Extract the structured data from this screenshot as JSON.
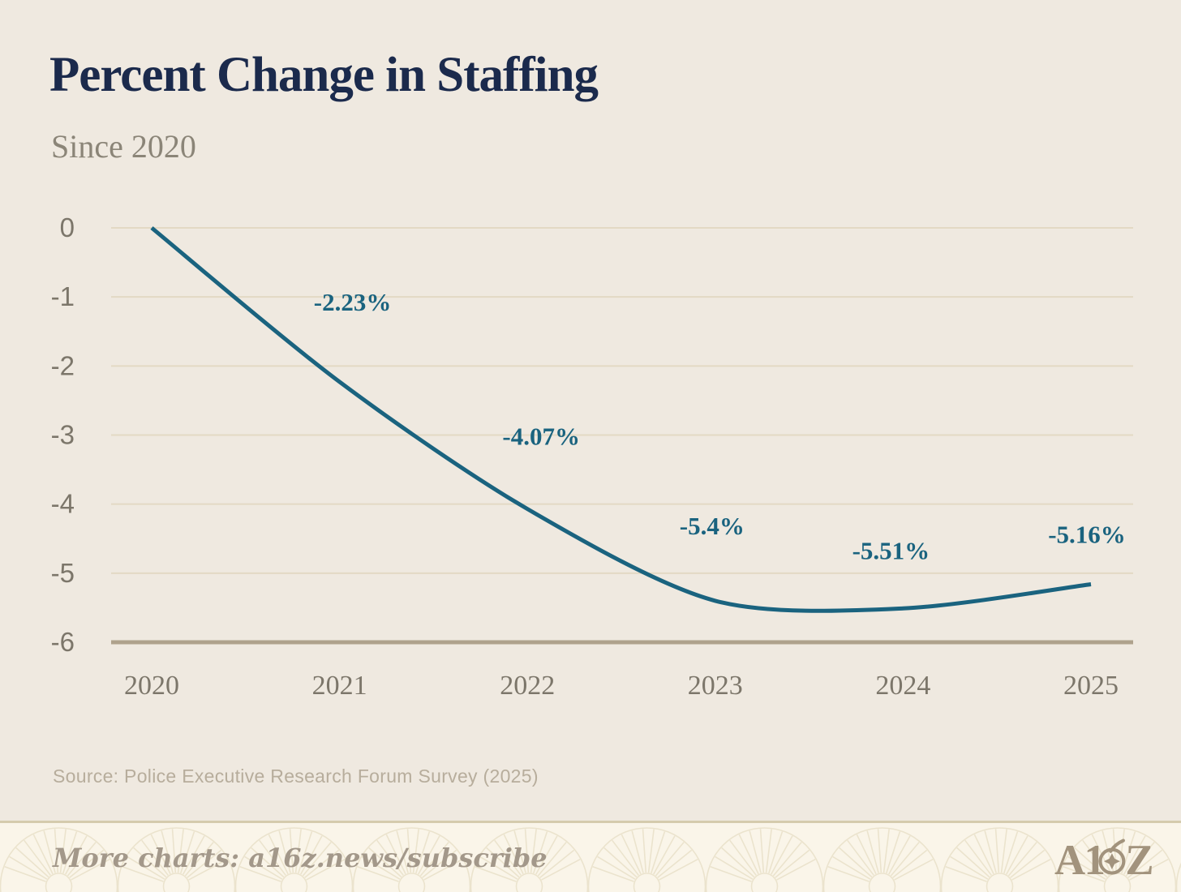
{
  "title": "Percent Change in Staffing",
  "subtitle": "Since 2020",
  "source": "Source: Police Executive Research Forum Survey (2025)",
  "footer": {
    "text": "More charts: a16z.news/subscribe",
    "logo_text": "A16Z",
    "logo_parts": [
      "A1",
      "Z"
    ]
  },
  "colors": {
    "background": "#EFE9E0",
    "footer_background": "#FAF5E9",
    "footer_border": "#D5CBAD",
    "title": "#1B2A4C",
    "subtitle": "#8B8578",
    "line": "#1A637F",
    "data_label": "#1A637F",
    "gridline": "#E3D9C4",
    "axis_line": "#AFA28C",
    "tick_label": "#7C766A",
    "source_text": "#B7AD9C",
    "footer_text": "#A3988A",
    "logo": "#A2937D",
    "pattern_stroke": "#E7DFC6"
  },
  "chart_data": {
    "type": "line",
    "title": "Percent Change in Staffing",
    "subtitle": "Since 2020",
    "x": [
      "2020",
      "2021",
      "2022",
      "2023",
      "2024",
      "2025"
    ],
    "values": [
      0,
      -2.23,
      -4.07,
      -5.4,
      -5.51,
      -5.16
    ],
    "point_labels": [
      "",
      "-2.23%",
      "-4.07%",
      "-5.4%",
      "-5.51%",
      "-5.16%"
    ],
    "xlabel": "",
    "ylabel": "",
    "ylim": [
      -6,
      0
    ],
    "yticks": [
      0,
      -1,
      -2,
      -3,
      -4,
      -5,
      -6
    ],
    "grid": true,
    "legend": false,
    "smoothing": true
  }
}
